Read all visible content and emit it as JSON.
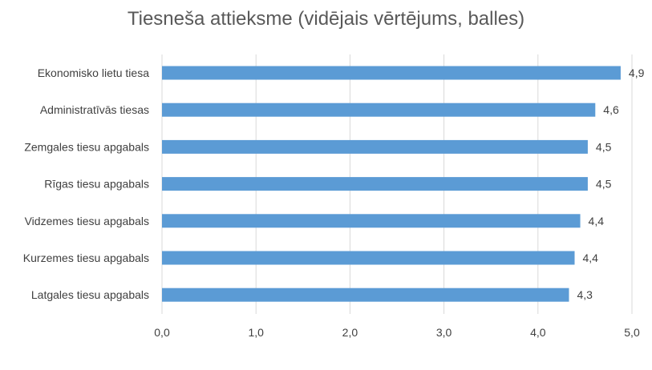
{
  "chart_data": {
    "type": "bar",
    "orientation": "horizontal",
    "title": "Tiesneša attieksme (vidējais vērtējums, balles)",
    "categories": [
      "Ekonomisko lietu tiesa",
      "Administratīvās tiesas",
      "Zemgales tiesu apgabals",
      "Rīgas tiesu apgabals",
      "Vidzemes tiesu apgabals",
      "Kurzemes tiesu apgabals",
      "Latgales tiesu apgabals"
    ],
    "values": [
      4.88,
      4.61,
      4.53,
      4.53,
      4.45,
      4.39,
      4.33
    ],
    "value_labels": [
      "4,9",
      "4,6",
      "4,5",
      "4,5",
      "4,4",
      "4,4",
      "4,3"
    ],
    "xlim": [
      0,
      5
    ],
    "x_ticks": [
      0,
      1,
      2,
      3,
      4,
      5
    ],
    "x_tick_labels": [
      "0,0",
      "1,0",
      "2,0",
      "3,0",
      "4,0",
      "5,0"
    ],
    "grid": "vertical",
    "legend": "none",
    "bar_color": "#5b9bd5"
  }
}
